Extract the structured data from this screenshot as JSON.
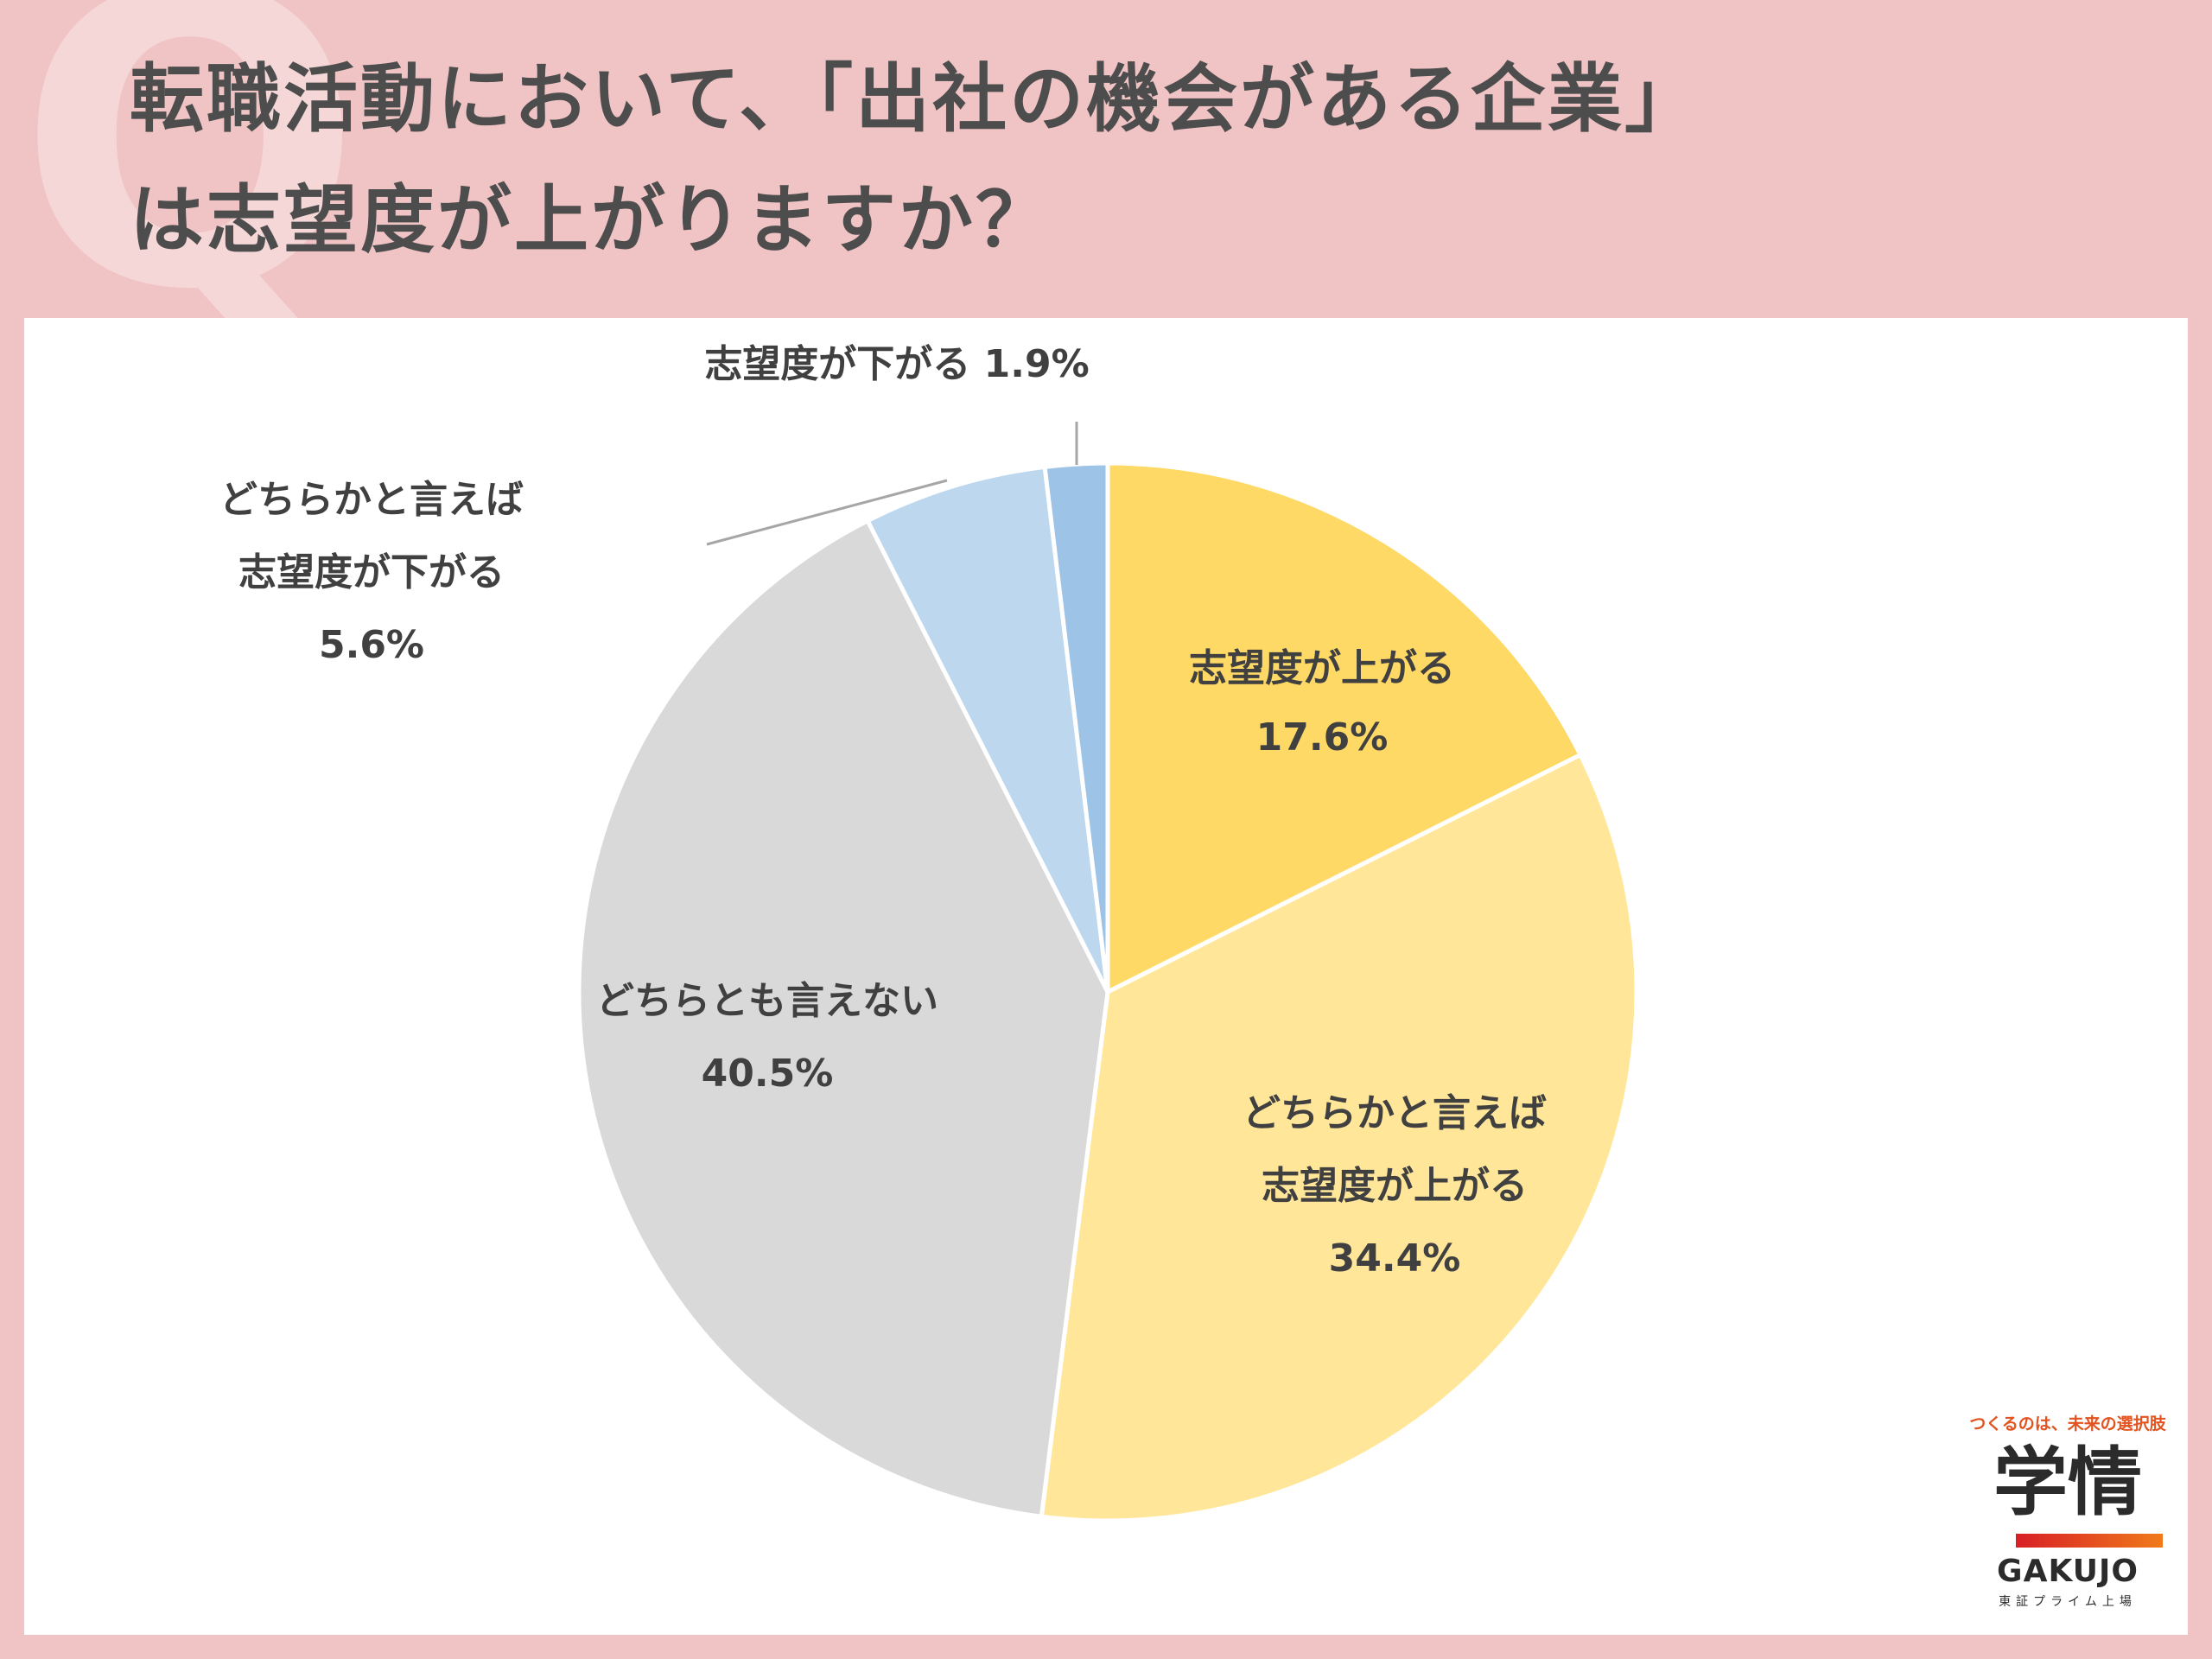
{
  "decor": {
    "q_letter": "Q"
  },
  "title": {
    "line1": "転職活動において、「出社の機会がある企業」",
    "line2": "は志望度が上がりますか？"
  },
  "chart_data": {
    "type": "pie",
    "title": "転職活動において、「出社の機会がある企業」は志望度が上がりますか？",
    "slices": [
      {
        "label": "志望度が上がる",
        "label_lines": [
          "志望度が上がる"
        ],
        "value": 17.6,
        "value_label": "17.6%",
        "color": "#ffd966"
      },
      {
        "label": "どちらかと言えば志望度が上がる",
        "label_lines": [
          "どちらかと言えば",
          "志望度が上がる"
        ],
        "value": 34.4,
        "value_label": "34.4%",
        "color": "#ffe699"
      },
      {
        "label": "どちらとも言えない",
        "label_lines": [
          "どちらとも言えない"
        ],
        "value": 40.5,
        "value_label": "40.5%",
        "color": "#d9d9d9"
      },
      {
        "label": "どちらかと言えば志望度が下がる",
        "label_lines": [
          "どちらかと言えば",
          "志望度が下がる"
        ],
        "value": 5.6,
        "value_label": "5.6%",
        "color": "#bdd7ee"
      },
      {
        "label": "志望度が下がる",
        "label_lines": [
          "志望度が下がる 1.9%"
        ],
        "value": 1.9,
        "value_label": "1.9%",
        "color": "#9dc3e6"
      }
    ],
    "start_angle_deg": 0,
    "direction": "clockwise"
  },
  "logo": {
    "tagline": "つくるのは、未来の選択肢",
    "name": "学情",
    "latin": "GAKUJO",
    "market": "東証プライム上場"
  }
}
